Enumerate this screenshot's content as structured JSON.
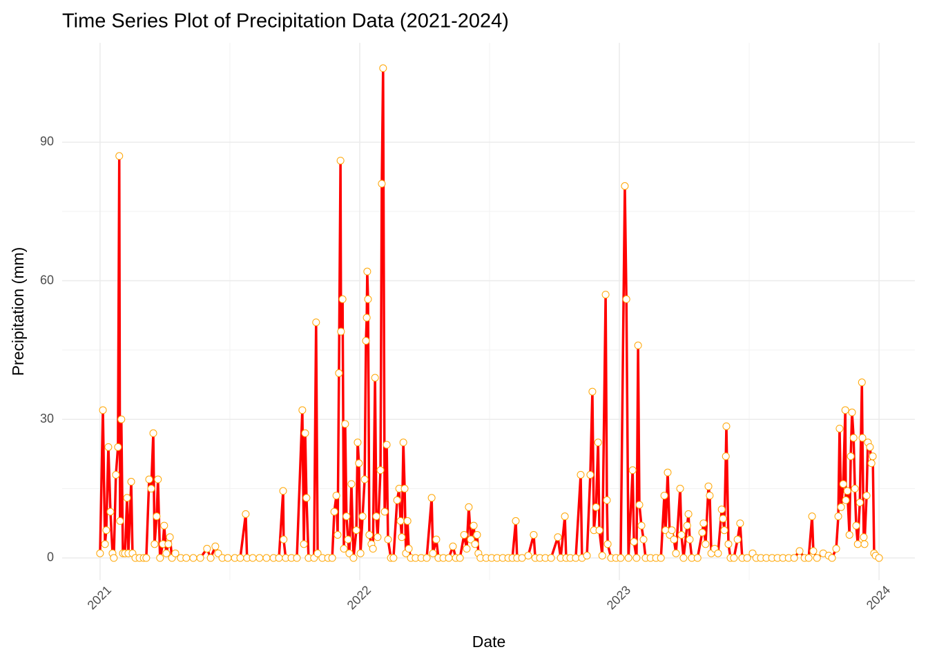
{
  "chart_data": {
    "type": "line",
    "title": "Time Series Plot of Precipitation Data (2021-2024)",
    "x_label": "Date",
    "y_label": "Precipitation (mm)",
    "line_color": "#ff0000",
    "marker_edge_color": "#ffa500",
    "marker_fill": "#ffffff",
    "grid": true,
    "xlim": [
      2020.854,
      2024.138
    ],
    "xticks": [
      2021,
      2022,
      2023,
      2024
    ],
    "ylim": [
      -4.8,
      111.5
    ],
    "yticks": [
      0,
      30,
      60,
      90
    ],
    "x": [
      2021.0,
      2021.011,
      2021.019,
      2021.024,
      2021.032,
      2021.04,
      2021.048,
      2021.053,
      2021.061,
      2021.069,
      2021.074,
      2021.077,
      2021.082,
      2021.088,
      2021.096,
      2021.104,
      2021.109,
      2021.12,
      2021.125,
      2021.136,
      2021.152,
      2021.168,
      2021.178,
      2021.189,
      2021.197,
      2021.205,
      2021.21,
      2021.218,
      2021.223,
      2021.231,
      2021.242,
      2021.247,
      2021.255,
      2021.263,
      2021.269,
      2021.277,
      2021.29,
      2021.311,
      2021.332,
      2021.359,
      2021.386,
      2021.412,
      2021.426,
      2021.444,
      2021.455,
      2021.471,
      2021.492,
      2021.519,
      2021.54,
      2021.561,
      2021.566,
      2021.588,
      2021.614,
      2021.641,
      2021.668,
      2021.689,
      2021.705,
      2021.707,
      2021.715,
      2021.737,
      2021.758,
      2021.779,
      2021.785,
      2021.79,
      2021.795,
      2021.803,
      2021.824,
      2021.832,
      2021.838,
      2021.856,
      2021.878,
      2021.894,
      2021.902,
      2021.91,
      2021.915,
      2021.92,
      2021.926,
      2021.928,
      2021.934,
      2021.939,
      2021.944,
      2021.949,
      2021.955,
      2021.96,
      2021.968,
      2021.976,
      2021.987,
      2021.992,
      2021.997,
      2022.003,
      2022.011,
      2022.019,
      2022.024,
      2022.027,
      2022.029,
      2022.032,
      2022.037,
      2022.045,
      2022.051,
      2022.059,
      2022.064,
      2022.069,
      2022.08,
      2022.085,
      2022.09,
      2022.096,
      2022.104,
      2022.109,
      2022.12,
      2022.13,
      2022.144,
      2022.152,
      2022.157,
      2022.162,
      2022.168,
      2022.173,
      2022.178,
      2022.184,
      2022.189,
      2022.197,
      2022.215,
      2022.237,
      2022.258,
      2022.277,
      2022.282,
      2022.295,
      2022.303,
      2022.322,
      2022.343,
      2022.359,
      2022.37,
      2022.386,
      2022.402,
      2022.412,
      2022.42,
      2022.428,
      2022.439,
      2022.444,
      2022.452,
      2022.457,
      2022.465,
      2022.487,
      2022.508,
      2022.529,
      2022.551,
      2022.572,
      2022.588,
      2022.601,
      2022.606,
      2022.625,
      2022.649,
      2022.67,
      2022.676,
      2022.694,
      2022.715,
      2022.737,
      2022.763,
      2022.774,
      2022.79,
      2022.795,
      2022.811,
      2022.832,
      2022.851,
      2022.856,
      2022.875,
      2022.888,
      2022.896,
      2022.902,
      2022.91,
      2022.918,
      2022.923,
      2022.934,
      2022.947,
      2022.952,
      2022.955,
      2022.968,
      2022.987,
      2023.005,
      2023.021,
      2023.027,
      2023.035,
      2023.051,
      2023.056,
      2023.066,
      2023.072,
      2023.077,
      2023.085,
      2023.093,
      2023.101,
      2023.12,
      2023.141,
      2023.16,
      2023.173,
      2023.178,
      2023.186,
      2023.194,
      2023.202,
      2023.21,
      2023.218,
      2023.234,
      2023.239,
      2023.247,
      2023.261,
      2023.266,
      2023.271,
      2023.279,
      2023.301,
      2023.319,
      2023.324,
      2023.332,
      2023.343,
      2023.348,
      2023.354,
      2023.367,
      2023.38,
      2023.394,
      2023.399,
      2023.404,
      2023.41,
      2023.412,
      2023.42,
      2023.428,
      2023.441,
      2023.455,
      2023.465,
      2023.473,
      2023.492,
      2023.513,
      2023.527,
      2023.545,
      2023.566,
      2023.588,
      2023.609,
      2023.63,
      2023.652,
      2023.673,
      2023.694,
      2023.713,
      2023.729,
      2023.742,
      2023.747,
      2023.761,
      2023.785,
      2023.806,
      2023.819,
      2023.835,
      2023.843,
      2023.848,
      2023.854,
      2023.862,
      2023.87,
      2023.872,
      2023.878,
      2023.886,
      2023.891,
      2023.896,
      2023.902,
      2023.907,
      2023.912,
      2023.918,
      2023.926,
      2023.934,
      2023.936,
      2023.941,
      2023.944,
      2023.952,
      2023.957,
      2023.965,
      2023.971,
      2023.976,
      2023.981,
      2023.987,
      2024.0
    ],
    "values": [
      1,
      32,
      3,
      6,
      24,
      10,
      1,
      0,
      18,
      24,
      87,
      8,
      30,
      1,
      1,
      13,
      1,
      16.5,
      1,
      0,
      0,
      0,
      0,
      17,
      15,
      27,
      3,
      9,
      17,
      0,
      3,
      7,
      1,
      3,
      4.5,
      0,
      1,
      0,
      0,
      0,
      0,
      2,
      0,
      2.5,
      1,
      0,
      0,
      0,
      0,
      9.5,
      0,
      0,
      0,
      0,
      0,
      0,
      14.5,
      4,
      0,
      0,
      0,
      32,
      3,
      27,
      13,
      0,
      0,
      51,
      1,
      0,
      0,
      0,
      10,
      13.5,
      5,
      40,
      86,
      49,
      56,
      2,
      29,
      9,
      4,
      1,
      16,
      0,
      6,
      25,
      20.5,
      1,
      9,
      17,
      47,
      52,
      62,
      56,
      5,
      3,
      2,
      39,
      9,
      4.5,
      19,
      81,
      106,
      10,
      24.5,
      4,
      0,
      0,
      12.5,
      15,
      8,
      4.5,
      25,
      15,
      1,
      8,
      2,
      0,
      0,
      0,
      0,
      13,
      1,
      4,
      0,
      0,
      0,
      2.5,
      0,
      0,
      5,
      2,
      11,
      4,
      7,
      3,
      5,
      1,
      0,
      0,
      0,
      0,
      0,
      0,
      0,
      8,
      0,
      0,
      0.5,
      5,
      0,
      0,
      0,
      0,
      4.5,
      0,
      9,
      0,
      0,
      0,
      18,
      0,
      0.5,
      18,
      36,
      6,
      11,
      25,
      6,
      0.5,
      57,
      12.5,
      3,
      0,
      0,
      0,
      80.5,
      56,
      0,
      19,
      3.5,
      0,
      46,
      11.5,
      7,
      4,
      0,
      0,
      0,
      0,
      13.5,
      6,
      18.5,
      5,
      6,
      4,
      1,
      15,
      5,
      0,
      7,
      9.5,
      4,
      0,
      0,
      5.5,
      7.5,
      3,
      15.5,
      13.5,
      1,
      2,
      1,
      10.5,
      8.5,
      6,
      22,
      28.5,
      3,
      0,
      0,
      4,
      7.5,
      0,
      0,
      1,
      0,
      0,
      0,
      0,
      0,
      0,
      0,
      0,
      1.5,
      0,
      0,
      9,
      1.5,
      0,
      1,
      0.5,
      0,
      2,
      9,
      28,
      11,
      16,
      32,
      12.5,
      14.5,
      5,
      22,
      31.5,
      26,
      15,
      7,
      3,
      12,
      38,
      26,
      4.5,
      3,
      13.5,
      25,
      24,
      20.5,
      22,
      1,
      0.5,
      0
    ]
  }
}
